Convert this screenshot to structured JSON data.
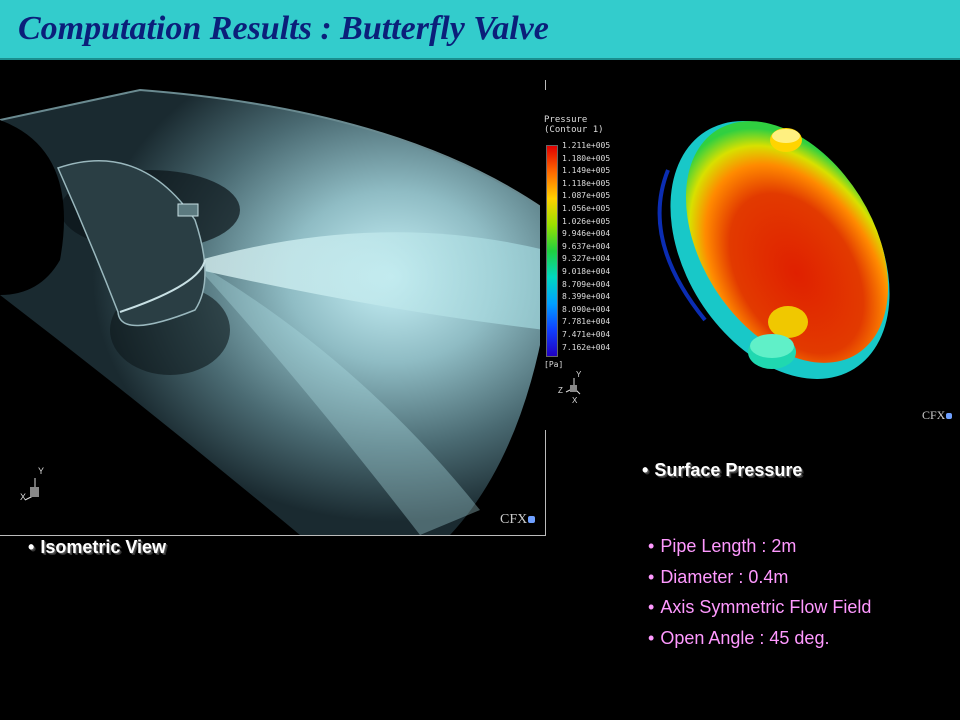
{
  "title": "Computation Results : Butterfly Valve",
  "captions": {
    "isometric": "Isometric View",
    "surface": "Surface Pressure"
  },
  "bullet_glyph": "•",
  "legend": {
    "title_line1": "Pressure",
    "title_line2": "(Contour 1)",
    "values": [
      "1.211e+005",
      "1.180e+005",
      "1.149e+005",
      "1.118e+005",
      "1.087e+005",
      "1.056e+005",
      "1.026e+005",
      "9.946e+004",
      "9.637e+004",
      "9.327e+004",
      "9.018e+004",
      "8.709e+004",
      "8.399e+004",
      "8.090e+004",
      "7.781e+004",
      "7.471e+004",
      "7.162e+004"
    ],
    "unit": "[Pa]"
  },
  "axes": {
    "iso": {
      "y": "Y",
      "x": "X"
    },
    "surface": {
      "y": "Y",
      "z": "Z",
      "x": "X"
    }
  },
  "logo_text": "CFX",
  "specs": [
    "Pipe Length : 2m",
    "Diameter : 0.4m",
    "Axis Symmetric Flow Field",
    "Open Angle : 45 deg."
  ],
  "colors": {
    "title_bar": "#33cccc",
    "title_text": "#0b1f7a",
    "spec_text": "#ff99ff",
    "background": "#000000"
  }
}
